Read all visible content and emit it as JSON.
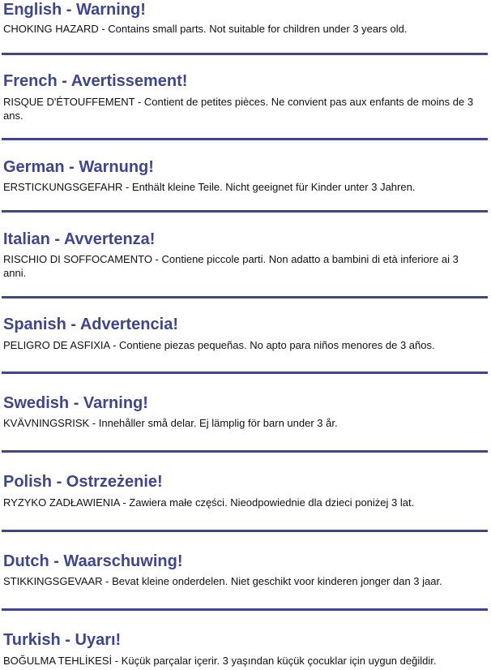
{
  "accent_color": "#3f4689",
  "warnings": [
    {
      "heading": "English - Warning!",
      "text": "CHOKING HAZARD - Contains small parts. Not suitable for children under 3 years old."
    },
    {
      "heading": "French - Avertissement!",
      "text": "RISQUE D'ÉTOUFFEMENT - Contient de petites pièces. Ne convient pas aux enfants de moins de 3 ans."
    },
    {
      "heading": "German - Warnung!",
      "text": "ERSTICKUNGSGEFAHR - Enthält kleine Teile. Nicht geeignet für Kinder unter 3 Jahren."
    },
    {
      "heading": "Italian - Avvertenza!",
      "text": "RISCHIO DI SOFFOCAMENTO - Contiene piccole parti. Non adatto a bambini di età inferiore ai 3 anni."
    },
    {
      "heading": "Spanish - Advertencia!",
      "text": "PELIGRO DE ASFIXIA - Contiene piezas pequeñas. No apto para niños menores de 3 años."
    },
    {
      "heading": "Swedish - Varning!",
      "text": "KVÄVNINGSRISK - Innehåller små delar. Ej lämplig för barn under 3 år."
    },
    {
      "heading": "Polish - Ostrzeżenie!",
      "text": "RYZYKO ZADŁAWIENIA - Zawiera małe części. Nieodpowiednie dla dzieci poniżej 3 lat."
    },
    {
      "heading": "Dutch - Waarschuwing!",
      "text": "STIKKINGSGEVAAR - Bevat kleine onderdelen. Niet geschikt voor kinderen jonger dan 3 jaar."
    },
    {
      "heading": "Turkish -  Uyarı!",
      "text": "BOĞULMA TEHLİKESİ - Küçük parçalar içerir. 3 yaşından küçük çocuklar için uygun değildir."
    }
  ]
}
